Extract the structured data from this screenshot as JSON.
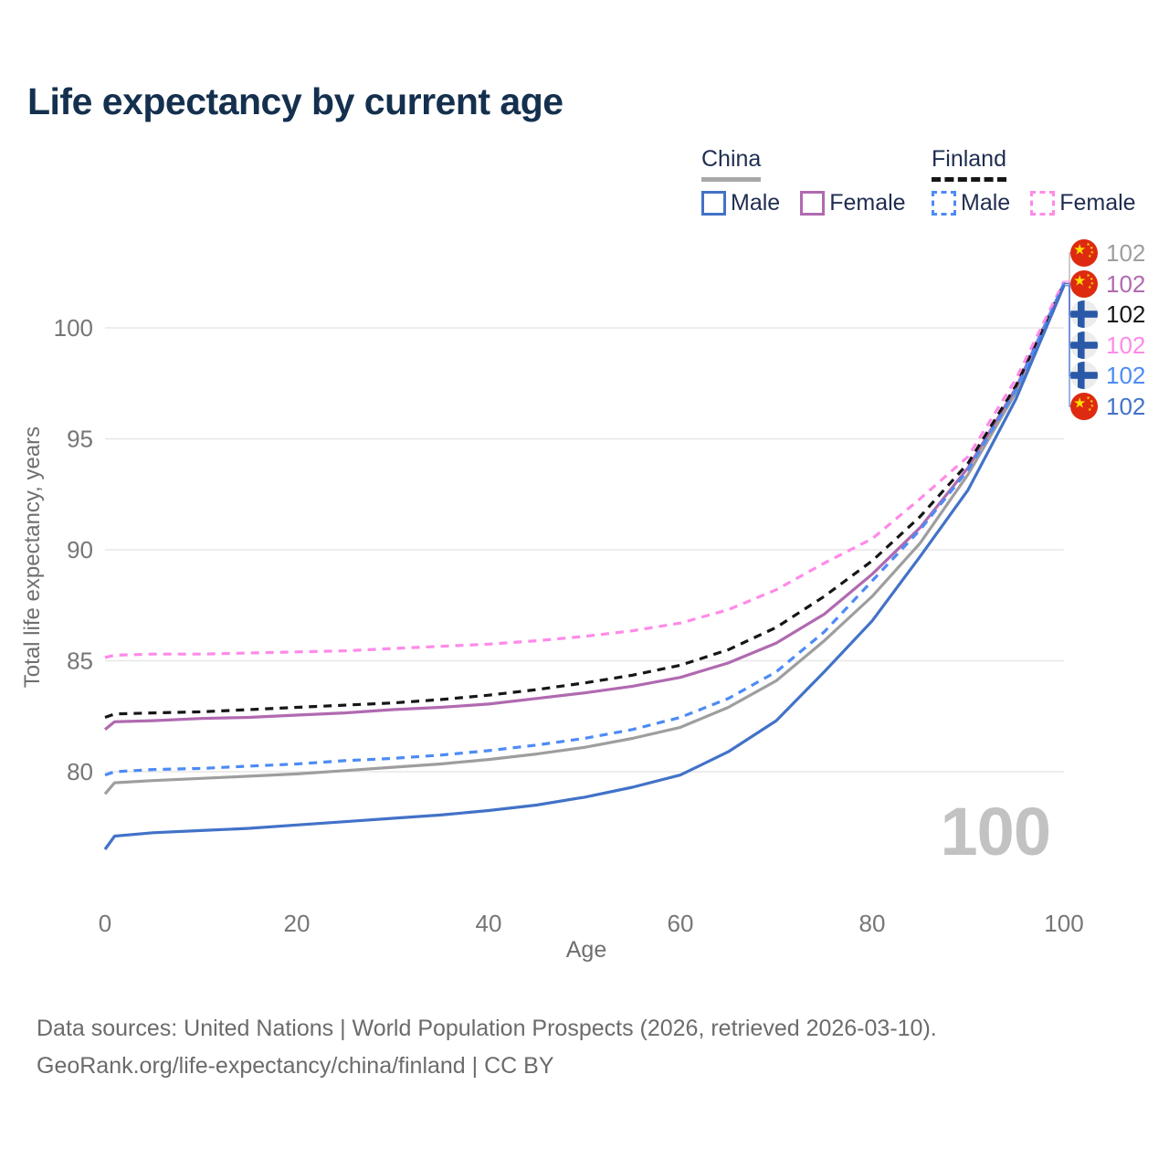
{
  "title": "Life expectancy by current age",
  "palette": {
    "china_male": "#4272c8",
    "china_female": "#b06ab0",
    "china_total": "#9e9e9e",
    "finland_male": "#4d8bf5",
    "finland_female": "#ff8ae8",
    "finland_total": "#161616",
    "title_color": "#14304e",
    "tick_color": "#767676",
    "gridline_color": "#e7e7e7",
    "watermark_color": "#c2c2c2"
  },
  "legend": {
    "groups": [
      {
        "label": "China",
        "line_style": "solid",
        "items": [
          {
            "label": "Male",
            "color_key": "china_male"
          },
          {
            "label": "Female",
            "color_key": "china_female"
          }
        ]
      },
      {
        "label": "Finland",
        "line_style": "dashed",
        "items": [
          {
            "label": "Male",
            "color_key": "finland_male"
          },
          {
            "label": "Female",
            "color_key": "finland_female"
          }
        ]
      }
    ]
  },
  "chart_data": {
    "type": "line",
    "title": "Life expectancy by current age",
    "xlabel": "Age",
    "ylabel": "Total life expectancy, years",
    "xlim": [
      0,
      100
    ],
    "ylim": [
      76,
      103
    ],
    "x_ticks": [
      0,
      20,
      40,
      60,
      80,
      100
    ],
    "y_ticks": [
      80,
      85,
      90,
      95,
      100
    ],
    "grid": "horizontal",
    "legend_position": "top-right",
    "watermark": "100",
    "x": [
      0,
      1,
      5,
      10,
      15,
      20,
      25,
      30,
      35,
      40,
      45,
      50,
      55,
      60,
      65,
      70,
      75,
      80,
      85,
      90,
      95,
      100
    ],
    "series": [
      {
        "name": "China",
        "key": "china_total",
        "country": "China",
        "sex": "both",
        "color_key": "china_total",
        "dash": false,
        "values": [
          79.0,
          79.5,
          79.6,
          79.7,
          79.8,
          79.9,
          80.05,
          80.2,
          80.35,
          80.55,
          80.8,
          81.1,
          81.5,
          82.0,
          82.9,
          84.1,
          85.9,
          87.9,
          90.3,
          93.4,
          97.1,
          102.0
        ]
      },
      {
        "name": "China Female",
        "key": "china_female",
        "country": "China",
        "sex": "female",
        "color_key": "china_female",
        "dash": false,
        "values": [
          81.9,
          82.25,
          82.3,
          82.4,
          82.45,
          82.55,
          82.65,
          82.8,
          82.9,
          83.05,
          83.3,
          83.55,
          83.85,
          84.25,
          84.9,
          85.8,
          87.1,
          88.9,
          91.0,
          93.7,
          97.3,
          102.0
        ]
      },
      {
        "name": "Finland",
        "key": "finland_total",
        "country": "Finland",
        "sex": "both",
        "color_key": "finland_total",
        "dash": true,
        "values": [
          82.45,
          82.6,
          82.65,
          82.7,
          82.8,
          82.9,
          83.0,
          83.1,
          83.25,
          83.45,
          83.7,
          84.0,
          84.35,
          84.8,
          85.5,
          86.5,
          87.9,
          89.5,
          91.5,
          93.9,
          97.4,
          102.0
        ]
      },
      {
        "name": "Finland Female",
        "key": "finland_female",
        "country": "Finland",
        "sex": "female",
        "color_key": "finland_female",
        "dash": true,
        "values": [
          85.15,
          85.25,
          85.3,
          85.3,
          85.35,
          85.4,
          85.45,
          85.55,
          85.65,
          85.75,
          85.9,
          86.1,
          86.35,
          86.7,
          87.3,
          88.2,
          89.4,
          90.5,
          92.3,
          94.2,
          97.7,
          102.1
        ]
      },
      {
        "name": "Finland Male",
        "key": "finland_male",
        "country": "Finland",
        "sex": "male",
        "color_key": "finland_male",
        "dash": true,
        "values": [
          79.85,
          80.0,
          80.1,
          80.15,
          80.25,
          80.35,
          80.5,
          80.6,
          80.75,
          80.95,
          81.2,
          81.5,
          81.9,
          82.45,
          83.3,
          84.5,
          86.3,
          88.6,
          90.9,
          93.6,
          97.2,
          102.0
        ]
      },
      {
        "name": "China Male",
        "key": "china_male",
        "country": "China",
        "sex": "male",
        "color_key": "china_male",
        "dash": false,
        "values": [
          76.5,
          77.1,
          77.25,
          77.35,
          77.45,
          77.6,
          77.75,
          77.9,
          78.05,
          78.25,
          78.5,
          78.85,
          79.3,
          79.85,
          80.9,
          82.3,
          84.5,
          86.8,
          89.7,
          92.7,
          96.8,
          101.9
        ]
      }
    ],
    "end_labels": [
      {
        "series_key": "china_total",
        "flag": "china",
        "value": "102",
        "color_key": "china_total"
      },
      {
        "series_key": "china_female",
        "flag": "china",
        "value": "102",
        "color_key": "china_female"
      },
      {
        "series_key": "finland_total",
        "flag": "finland",
        "value": "102",
        "color_key": "finland_total"
      },
      {
        "series_key": "finland_female",
        "flag": "finland",
        "value": "102",
        "color_key": "finland_female"
      },
      {
        "series_key": "finland_male",
        "flag": "finland",
        "value": "102",
        "color_key": "finland_male"
      },
      {
        "series_key": "china_male",
        "flag": "china",
        "value": "102",
        "color_key": "china_male"
      }
    ]
  },
  "footer": {
    "line1": "Data sources: United Nations | World Population Prospects (2026, retrieved 2026-03-10).",
    "line2": "GeoRank.org/life-expectancy/china/finland | CC BY"
  }
}
